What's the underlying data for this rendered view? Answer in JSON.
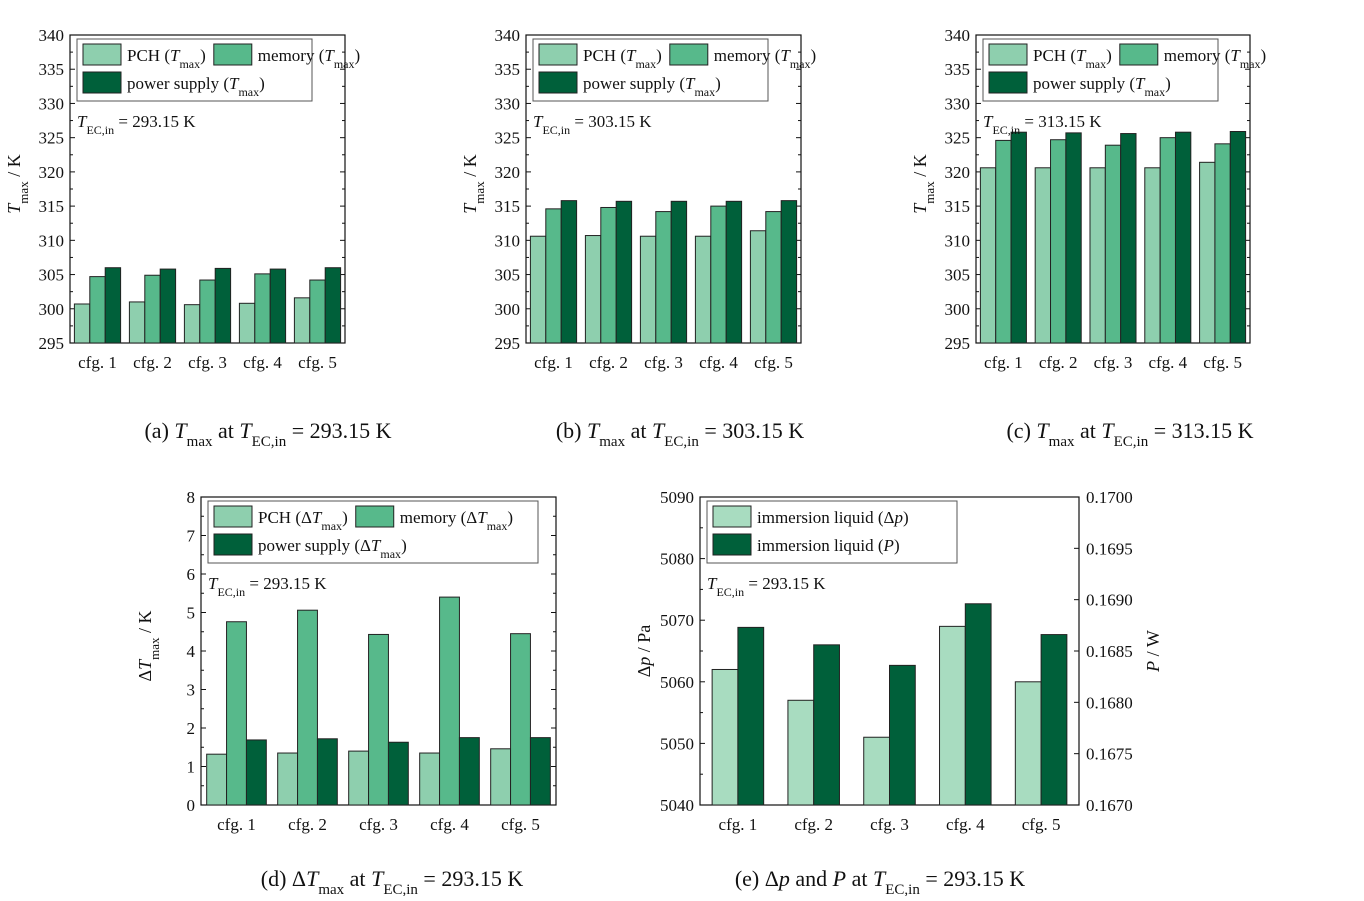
{
  "palette": {
    "pch": "#8ecfae",
    "memory": "#57b98b",
    "supply": "#00603a",
    "light": "#a8dcc0",
    "dark": "#00603a"
  },
  "chart_data": [
    {
      "id": "a",
      "type": "bar",
      "categories": [
        "cfg. 1",
        "cfg. 2",
        "cfg. 3",
        "cfg. 4",
        "cfg. 5"
      ],
      "ylim": [
        295,
        340
      ],
      "yticks": [
        295,
        300,
        305,
        310,
        315,
        320,
        325,
        330,
        335,
        340
      ],
      "ylabel": {
        "main": "T",
        "sub": "max",
        "unit": " / K"
      },
      "series": [
        {
          "name": {
            "main": "PCH (",
            "italic": "T",
            "sub": "max",
            "end": ")"
          },
          "color": "#8ecfae",
          "values": [
            300.7,
            301.0,
            300.6,
            300.8,
            301.6
          ]
        },
        {
          "name": {
            "main": "memory (",
            "italic": "T",
            "sub": "max",
            "end": ")"
          },
          "color": "#57b98b",
          "values": [
            304.7,
            304.9,
            304.2,
            305.1,
            304.2
          ]
        },
        {
          "name": {
            "main": "power supply (",
            "italic": "T",
            "sub": "max",
            "end": ")"
          },
          "color": "#00603a",
          "values": [
            306.0,
            305.8,
            305.9,
            305.8,
            306.0
          ]
        }
      ],
      "annotation": {
        "main": "T",
        "sub": "EC,in",
        "value": " = 293.15 K"
      },
      "caption": {
        "prefix": "(a) ",
        "main": "T",
        "sub": "max",
        "mid": " at ",
        "main2": "T",
        "sub2": "EC,in",
        "value": " = 293.15 K"
      }
    },
    {
      "id": "b",
      "type": "bar",
      "categories": [
        "cfg. 1",
        "cfg. 2",
        "cfg. 3",
        "cfg. 4",
        "cfg. 5"
      ],
      "ylim": [
        295,
        340
      ],
      "yticks": [
        295,
        300,
        305,
        310,
        315,
        320,
        325,
        330,
        335,
        340
      ],
      "ylabel": {
        "main": "T",
        "sub": "max",
        "unit": " / K"
      },
      "series": [
        {
          "name": {
            "main": "PCH (",
            "italic": "T",
            "sub": "max",
            "end": ")"
          },
          "color": "#8ecfae",
          "values": [
            310.6,
            310.7,
            310.6,
            310.6,
            311.4
          ]
        },
        {
          "name": {
            "main": "memory (",
            "italic": "T",
            "sub": "max",
            "end": ")"
          },
          "color": "#57b98b",
          "values": [
            314.6,
            314.8,
            314.2,
            315.0,
            314.2
          ]
        },
        {
          "name": {
            "main": "power supply (",
            "italic": "T",
            "sub": "max",
            "end": ")"
          },
          "color": "#00603a",
          "values": [
            315.8,
            315.7,
            315.7,
            315.7,
            315.8
          ]
        }
      ],
      "annotation": {
        "main": "T",
        "sub": "EC,in",
        "value": " = 303.15 K"
      },
      "caption": {
        "prefix": "(b) ",
        "main": "T",
        "sub": "max",
        "mid": " at ",
        "main2": "T",
        "sub2": "EC,in",
        "value": " = 303.15 K"
      }
    },
    {
      "id": "c",
      "type": "bar",
      "categories": [
        "cfg. 1",
        "cfg. 2",
        "cfg. 3",
        "cfg. 4",
        "cfg. 5"
      ],
      "ylim": [
        295,
        340
      ],
      "yticks": [
        295,
        300,
        305,
        310,
        315,
        320,
        325,
        330,
        335,
        340
      ],
      "ylabel": {
        "main": "T",
        "sub": "max",
        "unit": " / K"
      },
      "series": [
        {
          "name": {
            "main": "PCH (",
            "italic": "T",
            "sub": "max",
            "end": ")"
          },
          "color": "#8ecfae",
          "values": [
            320.6,
            320.6,
            320.6,
            320.6,
            321.4
          ]
        },
        {
          "name": {
            "main": "memory (",
            "italic": "T",
            "sub": "max",
            "end": ")"
          },
          "color": "#57b98b",
          "values": [
            324.6,
            324.7,
            323.9,
            325.0,
            324.1
          ]
        },
        {
          "name": {
            "main": "power supply (",
            "italic": "T",
            "sub": "max",
            "end": ")"
          },
          "color": "#00603a",
          "values": [
            325.8,
            325.7,
            325.6,
            325.8,
            325.9
          ]
        }
      ],
      "annotation": {
        "main": "T",
        "sub": "EC,in",
        "value": " = 313.15 K"
      },
      "caption": {
        "prefix": "(c) ",
        "main": "T",
        "sub": "max",
        "mid": " at ",
        "main2": "T",
        "sub2": "EC,in",
        "value": " = 313.15 K"
      }
    },
    {
      "id": "d",
      "type": "bar",
      "categories": [
        "cfg. 1",
        "cfg. 2",
        "cfg. 3",
        "cfg. 4",
        "cfg. 5"
      ],
      "ylim": [
        0,
        8
      ],
      "yticks": [
        0,
        1,
        2,
        3,
        4,
        5,
        6,
        7,
        8
      ],
      "ylabel": {
        "pre": "Δ",
        "main": "T",
        "sub": "max",
        "unit": " / K"
      },
      "series": [
        {
          "name": {
            "main": "PCH (Δ",
            "italic": "T",
            "sub": "max",
            "end": ")"
          },
          "color": "#8ecfae",
          "values": [
            1.32,
            1.35,
            1.4,
            1.35,
            1.46
          ]
        },
        {
          "name": {
            "main": "memory (Δ",
            "italic": "T",
            "sub": "max",
            "end": ")"
          },
          "color": "#57b98b",
          "values": [
            4.76,
            5.06,
            4.43,
            5.4,
            4.45
          ]
        },
        {
          "name": {
            "main": "power supply (Δ",
            "italic": "T",
            "sub": "max",
            "end": ")"
          },
          "color": "#00603a",
          "values": [
            1.69,
            1.72,
            1.63,
            1.75,
            1.75
          ]
        }
      ],
      "annotation": {
        "main": "T",
        "sub": "EC,in",
        "value": " = 293.15 K"
      },
      "caption": {
        "prefix": "(d) Δ",
        "main": "T",
        "sub": "max",
        "mid": " at ",
        "main2": "T",
        "sub2": "EC,in",
        "value": " = 293.15 K"
      }
    },
    {
      "id": "e",
      "type": "bar",
      "categories": [
        "cfg. 1",
        "cfg. 2",
        "cfg. 3",
        "cfg. 4",
        "cfg. 5"
      ],
      "ylim": [
        5040,
        5090
      ],
      "yticks": [
        5040,
        5050,
        5060,
        5070,
        5080,
        5090
      ],
      "ylabel": {
        "pre": "Δ",
        "main": "p",
        "sub": "",
        "unit": " / Pa"
      },
      "y2lim": [
        0.167,
        0.17
      ],
      "y2ticks": [
        "0.1670",
        "0.1675",
        "0.1680",
        "0.1685",
        "0.1690",
        "0.1695",
        "0.1700"
      ],
      "y2label": {
        "main": "P",
        "unit": " / W"
      },
      "series": [
        {
          "name": {
            "main": "immersion liquid (Δ",
            "italic": "p",
            "sub": "",
            "end": ")"
          },
          "color": "#a8dcc0",
          "axis": "left",
          "values": [
            5062,
            5057,
            5051,
            5069,
            5060
          ]
        },
        {
          "name": {
            "main": "immersion liquid (",
            "italic": "P",
            "sub": "",
            "end": ")"
          },
          "color": "#00603a",
          "axis": "right",
          "values": [
            0.16873,
            0.16856,
            0.16836,
            0.16896,
            0.16866
          ]
        }
      ],
      "annotation": {
        "main": "T",
        "sub": "EC,in",
        "value": " = 293.15 K"
      },
      "caption": {
        "prefix": "(e) Δ",
        "main": "p",
        "sub": "",
        "mid": " and ",
        "main2": "P",
        "mid2": " at ",
        "main3": "T",
        "sub3": "EC,in",
        "value": " = 293.15 K"
      }
    }
  ]
}
